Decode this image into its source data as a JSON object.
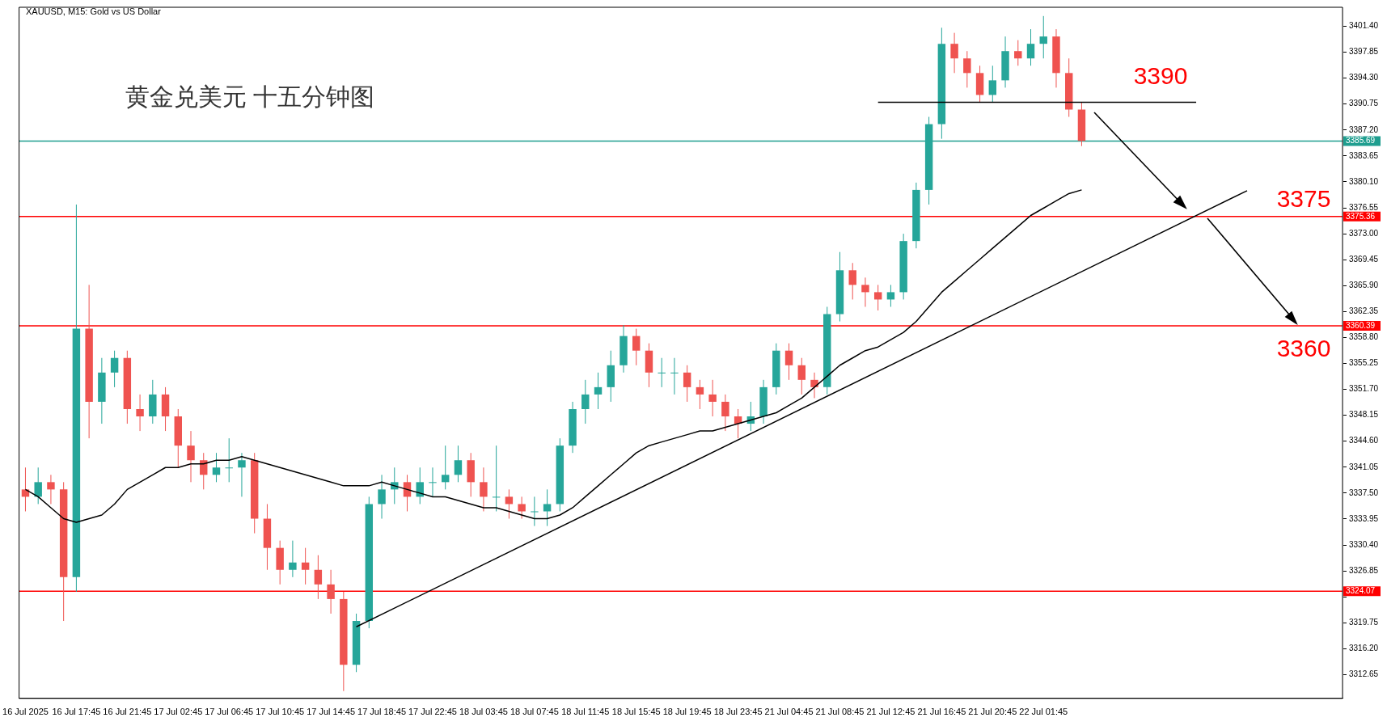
{
  "chart_data": {
    "type": "candlestick",
    "title": "黄金兑美元 十五分钟图",
    "subtitle": "XAUUSD, M15: Gold vs US Dollar",
    "categories": [
      "16 Jul 2025",
      null,
      null,
      null,
      "16 Jul 17:45",
      null,
      null,
      null,
      "16 Jul 21:45",
      null,
      null,
      null,
      "17 Jul 02:45",
      null,
      null,
      null,
      "17 Jul 06:45",
      null,
      null,
      null,
      "17 Jul 10:45",
      null,
      null,
      null,
      "17 Jul 14:45",
      null,
      null,
      null,
      "17 Jul 18:45",
      null,
      null,
      null,
      "17 Jul 22:45",
      null,
      null,
      null,
      "18 Jul 03:45",
      null,
      null,
      null,
      "18 Jul 07:45",
      null,
      null,
      null,
      "18 Jul 11:45",
      null,
      null,
      null,
      "18 Jul 15:45",
      null,
      null,
      null,
      "18 Jul 19:45",
      null,
      null,
      null,
      "18 Jul 23:45",
      null,
      null,
      null,
      "21 Jul 04:45",
      null,
      null,
      null,
      "21 Jul 08:45",
      null,
      null,
      null,
      "21 Jul 12:45",
      null,
      null,
      null,
      "21 Jul 16:45",
      null,
      null,
      null,
      "21 Jul 20:45",
      null,
      null,
      null,
      "22 Jul 01:45",
      null,
      null,
      null,
      null,
      null,
      null,
      null,
      null,
      null,
      null,
      null,
      null,
      null,
      null,
      null,
      null,
      null,
      null,
      null,
      null,
      null,
      null,
      null
    ],
    "ohlc": [
      [
        3338,
        3341,
        3335,
        3337
      ],
      [
        3337,
        3341,
        3336,
        3339
      ],
      [
        3339,
        3340,
        3336,
        3338
      ],
      [
        3338,
        3339,
        3320,
        3326
      ],
      [
        3326,
        3377,
        3324,
        3360
      ],
      [
        3360,
        3366,
        3345,
        3350
      ],
      [
        3350,
        3356,
        3347,
        3354
      ],
      [
        3354,
        3357,
        3352,
        3356
      ],
      [
        3356,
        3357,
        3347,
        3349
      ],
      [
        3349,
        3351,
        3346,
        3348
      ],
      [
        3348,
        3353,
        3347,
        3351
      ],
      [
        3351,
        3352,
        3346,
        3348
      ],
      [
        3348,
        3349,
        3341,
        3344
      ],
      [
        3344,
        3346,
        3339,
        3342
      ],
      [
        3342,
        3343,
        3338,
        3340
      ],
      [
        3340,
        3343,
        3339,
        3341
      ],
      [
        3341,
        3345,
        3339,
        3341
      ],
      [
        3341,
        3343,
        3337,
        3342
      ],
      [
        3342,
        3343,
        3332,
        3334
      ],
      [
        3334,
        3336,
        3327,
        3330
      ],
      [
        3330,
        3331,
        3325,
        3327
      ],
      [
        3327,
        3331,
        3326,
        3328
      ],
      [
        3328,
        3330,
        3325,
        3327
      ],
      [
        3327,
        3329,
        3323,
        3325
      ],
      [
        3325,
        3327,
        3321,
        3323
      ],
      [
        3323,
        3324,
        3310.4,
        3314
      ],
      [
        3314,
        3321,
        3313,
        3320
      ],
      [
        3320,
        3337,
        3319,
        3336
      ],
      [
        3336,
        3340,
        3334,
        3338
      ],
      [
        3338,
        3341,
        3336,
        3339
      ],
      [
        3339,
        3340,
        3335,
        3337
      ],
      [
        3337,
        3341,
        3336,
        3339
      ],
      [
        3339,
        3341,
        3337,
        3339
      ],
      [
        3339,
        3344,
        3338,
        3340
      ],
      [
        3340,
        3344,
        3339,
        3342
      ],
      [
        3342,
        3343,
        3337,
        3339
      ],
      [
        3339,
        3341,
        3335,
        3337
      ],
      [
        3337,
        3344,
        3335,
        3337
      ],
      [
        3337,
        3338,
        3334,
        3336
      ],
      [
        3336,
        3337,
        3334,
        3335
      ],
      [
        3335,
        3337,
        3333,
        3335
      ],
      [
        3335,
        3338,
        3333,
        3336
      ],
      [
        3336,
        3345,
        3335,
        3344
      ],
      [
        3344,
        3350,
        3343,
        3349
      ],
      [
        3349,
        3353,
        3347,
        3351
      ],
      [
        3351,
        3354,
        3349,
        3352
      ],
      [
        3352,
        3357,
        3350,
        3355
      ],
      [
        3355,
        3360.5,
        3354,
        3359
      ],
      [
        3359,
        3360,
        3355,
        3357
      ],
      [
        3357,
        3358,
        3352,
        3354
      ],
      [
        3354,
        3356,
        3352,
        3354
      ],
      [
        3354,
        3356,
        3351,
        3354
      ],
      [
        3354,
        3355,
        3350,
        3352
      ],
      [
        3352,
        3353,
        3349,
        3351
      ],
      [
        3351,
        3353,
        3348,
        3350
      ],
      [
        3350,
        3351,
        3346,
        3348
      ],
      [
        3348,
        3349,
        3345,
        3347
      ],
      [
        3347,
        3350,
        3346,
        3348
      ],
      [
        3348,
        3353,
        3347,
        3352
      ],
      [
        3352,
        3358,
        3351,
        3357
      ],
      [
        3357,
        3358,
        3353,
        3355
      ],
      [
        3355,
        3356,
        3351,
        3353
      ],
      [
        3353,
        3354,
        3350.5,
        3352
      ],
      [
        3352,
        3363,
        3351,
        3362
      ],
      [
        3362,
        3370.5,
        3361,
        3368
      ],
      [
        3368,
        3369,
        3364,
        3366
      ],
      [
        3366,
        3367,
        3363,
        3365
      ],
      [
        3365,
        3366,
        3362.5,
        3364
      ],
      [
        3364,
        3366,
        3363,
        3365
      ],
      [
        3365,
        3373,
        3364,
        3372
      ],
      [
        3372,
        3380,
        3371,
        3379
      ],
      [
        3379,
        3389,
        3377,
        3388
      ],
      [
        3388,
        3401.2,
        3386,
        3399
      ],
      [
        3399,
        3400.5,
        3395,
        3397
      ],
      [
        3397,
        3398,
        3393,
        3395
      ],
      [
        3395,
        3396,
        3391,
        3392
      ],
      [
        3392,
        3396,
        3391,
        3394
      ],
      [
        3394,
        3400,
        3393,
        3398
      ],
      [
        3398,
        3399.5,
        3396,
        3397
      ],
      [
        3397,
        3401,
        3396,
        3399
      ],
      [
        3399,
        3402.8,
        3397,
        3400
      ],
      [
        3400,
        3401,
        3393,
        3395
      ],
      [
        3395,
        3397,
        3389,
        3390
      ],
      [
        3390,
        3391,
        3385,
        3385.7
      ],
      null,
      null,
      null,
      null,
      null,
      null,
      null,
      null,
      null,
      null,
      null,
      null,
      null,
      null,
      null,
      null,
      null,
      null,
      null,
      null
    ],
    "series": [
      {
        "type": "line",
        "color": "#000000",
        "values": [
          3338,
          3337,
          3335.5,
          3334,
          3333.5,
          3334,
          3334.5,
          3336,
          3338,
          3339,
          3340,
          3341,
          3341,
          3341.5,
          3341.5,
          3342,
          3342,
          3342.5,
          3342,
          3341.5,
          3341,
          3340.5,
          3340,
          3339.5,
          3339,
          3338.5,
          3338.5,
          3338.5,
          3339,
          3338.5,
          3338,
          3337.5,
          3337,
          3337,
          3336.5,
          3336,
          3335.5,
          3335.5,
          3335,
          3334.5,
          3334,
          3334,
          3334.5,
          3335.5,
          3337,
          3338.5,
          3340,
          3341.5,
          3343,
          3344,
          3344.5,
          3345,
          3345.5,
          3346,
          3346,
          3346.5,
          3347,
          3347.5,
          3348,
          3348.5,
          3349.5,
          3350.5,
          3352,
          3353.5,
          3355,
          3356,
          3357,
          3357.5,
          3358.5,
          3359.5,
          3361,
          3363,
          3365,
          3366.5,
          3368,
          3369.5,
          3371,
          3372.5,
          3374,
          3375.5,
          3376.5,
          3377.5,
          3378.5,
          3379,
          null,
          null,
          null,
          null,
          null,
          null,
          null,
          null,
          null,
          null,
          null,
          null,
          null,
          null,
          null,
          null,
          null,
          null,
          null,
          null
        ]
      },
      {
        "type": "line",
        "color": "#000000",
        "values": [
          null,
          null,
          null,
          null,
          null,
          null,
          null,
          null,
          null,
          null,
          null,
          null,
          null,
          null,
          null,
          null,
          null,
          null,
          null,
          null,
          null,
          null,
          null,
          null,
          null,
          null,
          3319.2,
          null,
          null,
          null,
          null,
          null,
          null,
          null,
          null,
          null,
          null,
          null,
          null,
          null,
          null,
          null,
          null,
          null,
          null,
          null,
          null,
          null,
          null,
          null,
          null,
          null,
          null,
          null,
          null,
          null,
          null,
          null,
          null,
          null,
          null,
          null,
          null,
          null,
          null,
          null,
          null,
          null,
          null,
          null,
          null,
          null,
          null,
          null,
          null,
          null,
          null,
          null,
          null,
          null,
          null,
          null,
          null,
          null,
          null,
          null,
          null,
          null,
          null,
          null,
          null,
          null,
          null,
          null,
          null,
          null,
          3378.9,
          null,
          null,
          null,
          null,
          null,
          null,
          null
        ]
      },
      {
        "type": "line",
        "color": "#000000",
        "values": [
          null,
          null,
          null,
          null,
          null,
          null,
          null,
          null,
          null,
          null,
          null,
          null,
          null,
          null,
          null,
          null,
          null,
          null,
          null,
          null,
          null,
          null,
          null,
          null,
          null,
          null,
          null,
          null,
          null,
          null,
          null,
          null,
          null,
          null,
          null,
          null,
          null,
          null,
          null,
          null,
          null,
          null,
          null,
          null,
          null,
          null,
          null,
          null,
          null,
          null,
          null,
          null,
          null,
          null,
          null,
          null,
          null,
          null,
          null,
          null,
          null,
          null,
          null,
          null,
          null,
          null,
          null,
          3391,
          null,
          null,
          null,
          null,
          null,
          null,
          null,
          null,
          null,
          null,
          null,
          null,
          null,
          null,
          null,
          null,
          null,
          null,
          null,
          null,
          null,
          null,
          null,
          null,
          3391,
          null,
          null,
          null,
          null,
          null,
          null,
          null,
          null,
          null,
          null,
          null
        ]
      }
    ],
    "ylim": [
      3309.4,
      3404.0
    ],
    "yticks": [
      {
        "value": 3312.65,
        "label": "3312.65"
      },
      {
        "value": 3316.2,
        "label": "3316.20"
      },
      {
        "value": 3319.75,
        "label": "3319.75"
      },
      {
        "value": 3323.3,
        "label": null
      },
      {
        "value": 3326.85,
        "label": "3326.85"
      },
      {
        "value": 3330.4,
        "label": "3330.40"
      },
      {
        "value": 3333.95,
        "label": "3333.95"
      },
      {
        "value": 3337.5,
        "label": "3337.50"
      },
      {
        "value": 3341.05,
        "label": "3341.05"
      },
      {
        "value": 3344.6,
        "label": "3344.60"
      },
      {
        "value": 3348.15,
        "label": "3348.15"
      },
      {
        "value": 3351.7,
        "label": "3351.70"
      },
      {
        "value": 3355.25,
        "label": "3355.25"
      },
      {
        "value": 3358.8,
        "label": "3358.80"
      },
      {
        "value": 3362.35,
        "label": "3362.35"
      },
      {
        "value": 3365.9,
        "label": "3365.90"
      },
      {
        "value": 3369.45,
        "label": "3369.45"
      },
      {
        "value": 3373,
        "label": "3373.00"
      },
      {
        "value": 3376.55,
        "label": "3376.55"
      },
      {
        "value": 3380.1,
        "label": "3380.10"
      },
      {
        "value": 3383.65,
        "label": "3383.65"
      },
      {
        "value": 3387.2,
        "label": "3387.20"
      },
      {
        "value": 3390.75,
        "label": "3390.75"
      },
      {
        "value": 3394.3,
        "label": "3394.30"
      },
      {
        "value": 3397.85,
        "label": "3397.85"
      },
      {
        "value": 3401.4,
        "label": "3401.40"
      }
    ],
    "ref_lines": [
      {
        "axis": "y",
        "value": 3385.69,
        "label": "3385.69",
        "color": "#1f9e8f"
      },
      {
        "axis": "y",
        "value": 3375.36,
        "label": "3375.36",
        "color": "#ff0000"
      },
      {
        "axis": "y",
        "value": 3360.39,
        "label": "3360.39",
        "color": "#ff0000"
      },
      {
        "axis": "y",
        "value": 3324.07,
        "label": "3324.07",
        "color": "#ff0000"
      }
    ],
    "annotations": [
      {
        "text": "3390",
        "y": 3391
      },
      {
        "text": "3375",
        "y": 3375.36
      },
      {
        "text": "3360",
        "y": 3360.39
      }
    ],
    "grid": false,
    "legend": false
  }
}
